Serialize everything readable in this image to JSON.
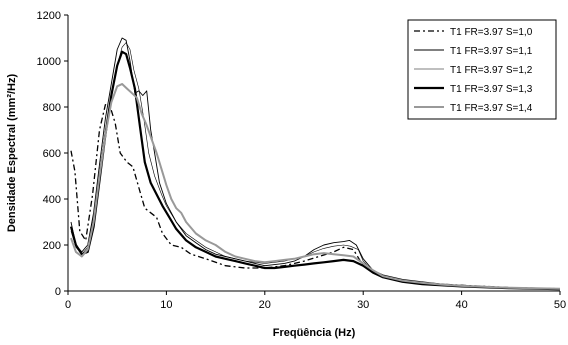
{
  "chart_data": {
    "type": "line",
    "title": "",
    "xlabel": "Freqüência (Hz)",
    "ylabel": "Densidade Espectral (mm²/Hz)",
    "xlim": [
      0,
      50
    ],
    "ylim": [
      0,
      1200
    ],
    "xticks": [
      "0",
      "10",
      "20",
      "30",
      "40",
      "50"
    ],
    "yticks": [
      "0",
      "200",
      "400",
      "600",
      "800",
      "1000",
      "1200"
    ],
    "grid": false,
    "legend_position": "top-right",
    "series": [
      {
        "name": "T1 FR=3.97 S=1,0",
        "color": "#000000",
        "dash": "dash-dot",
        "points": [
          [
            0.3,
            610
          ],
          [
            0.7,
            520
          ],
          [
            1.2,
            260
          ],
          [
            1.8,
            220
          ],
          [
            2.5,
            420
          ],
          [
            3.2,
            700
          ],
          [
            3.8,
            810
          ],
          [
            4.3,
            800
          ],
          [
            4.8,
            730
          ],
          [
            5.3,
            600
          ],
          [
            6.0,
            560
          ],
          [
            6.6,
            540
          ],
          [
            7.2,
            450
          ],
          [
            7.8,
            360
          ],
          [
            8.4,
            340
          ],
          [
            9.0,
            320
          ],
          [
            9.6,
            250
          ],
          [
            10.5,
            200
          ],
          [
            11.5,
            190
          ],
          [
            12.5,
            160
          ],
          [
            14,
            140
          ],
          [
            16,
            110
          ],
          [
            18,
            100
          ],
          [
            20,
            100
          ],
          [
            22,
            110
          ],
          [
            24,
            130
          ],
          [
            25.5,
            150
          ],
          [
            27,
            170
          ],
          [
            28,
            190
          ],
          [
            29,
            180
          ],
          [
            30,
            110
          ],
          [
            31,
            80
          ],
          [
            32,
            60
          ],
          [
            34,
            45
          ],
          [
            36,
            35
          ],
          [
            38,
            30
          ],
          [
            40,
            25
          ],
          [
            45,
            15
          ],
          [
            50,
            10
          ]
        ]
      },
      {
        "name": "T1 FR=3.97 S=1,1",
        "color": "#000000",
        "dash": "solid",
        "width": 0.9,
        "points": [
          [
            0.3,
            300
          ],
          [
            0.8,
            200
          ],
          [
            1.4,
            170
          ],
          [
            2.0,
            200
          ],
          [
            2.6,
            340
          ],
          [
            3.2,
            550
          ],
          [
            3.8,
            750
          ],
          [
            4.4,
            900
          ],
          [
            5.0,
            1050
          ],
          [
            5.5,
            1100
          ],
          [
            5.9,
            1090
          ],
          [
            6.3,
            1000
          ],
          [
            6.8,
            860
          ],
          [
            7.2,
            870
          ],
          [
            7.6,
            850
          ],
          [
            8.0,
            870
          ],
          [
            8.4,
            700
          ],
          [
            8.8,
            600
          ],
          [
            9.3,
            470
          ],
          [
            10,
            380
          ],
          [
            11,
            300
          ],
          [
            12,
            240
          ],
          [
            13,
            210
          ],
          [
            14,
            180
          ],
          [
            15,
            160
          ],
          [
            16,
            150
          ],
          [
            17,
            140
          ],
          [
            18,
            130
          ],
          [
            19,
            120
          ],
          [
            20,
            110
          ],
          [
            21,
            115
          ],
          [
            22,
            120
          ],
          [
            23,
            130
          ],
          [
            24,
            150
          ],
          [
            25,
            180
          ],
          [
            26,
            200
          ],
          [
            27,
            210
          ],
          [
            28,
            215
          ],
          [
            28.6,
            220
          ],
          [
            29.3,
            200
          ],
          [
            30,
            140
          ],
          [
            31,
            90
          ],
          [
            32,
            70
          ],
          [
            34,
            50
          ],
          [
            36,
            40
          ],
          [
            38,
            30
          ],
          [
            40,
            25
          ],
          [
            45,
            15
          ],
          [
            50,
            10
          ]
        ]
      },
      {
        "name": "T1 FR=3.97 S=1,2",
        "color": "#000000",
        "dash": "solid",
        "width": 0.6,
        "points": [
          [
            0.3,
            260
          ],
          [
            0.8,
            190
          ],
          [
            1.4,
            160
          ],
          [
            2.0,
            190
          ],
          [
            2.6,
            330
          ],
          [
            3.2,
            520
          ],
          [
            3.8,
            700
          ],
          [
            4.4,
            850
          ],
          [
            5.0,
            980
          ],
          [
            5.5,
            1060
          ],
          [
            5.9,
            1080
          ],
          [
            6.3,
            1050
          ],
          [
            6.7,
            960
          ],
          [
            7.2,
            880
          ],
          [
            7.7,
            750
          ],
          [
            8.2,
            600
          ],
          [
            8.8,
            500
          ],
          [
            9.5,
            420
          ],
          [
            10,
            370
          ],
          [
            11,
            300
          ],
          [
            12,
            250
          ],
          [
            13,
            220
          ],
          [
            14,
            190
          ],
          [
            15,
            170
          ],
          [
            16,
            150
          ],
          [
            17,
            140
          ],
          [
            18,
            130
          ],
          [
            19,
            125
          ],
          [
            20,
            120
          ],
          [
            21,
            125
          ],
          [
            22,
            130
          ],
          [
            23,
            140
          ],
          [
            24,
            150
          ],
          [
            25,
            170
          ],
          [
            26,
            185
          ],
          [
            27,
            195
          ],
          [
            28,
            200
          ],
          [
            28.7,
            195
          ],
          [
            29.5,
            180
          ],
          [
            30,
            130
          ],
          [
            31,
            85
          ],
          [
            32,
            65
          ],
          [
            34,
            45
          ],
          [
            36,
            35
          ],
          [
            38,
            28
          ],
          [
            40,
            22
          ],
          [
            45,
            14
          ],
          [
            50,
            10
          ]
        ]
      },
      {
        "name": "T1 FR=3.97 S=1,3",
        "color": "#000000",
        "dash": "solid",
        "width": 2.2,
        "points": [
          [
            0.3,
            280
          ],
          [
            0.8,
            200
          ],
          [
            1.4,
            160
          ],
          [
            2.0,
            170
          ],
          [
            2.6,
            280
          ],
          [
            3.2,
            480
          ],
          [
            3.8,
            680
          ],
          [
            4.4,
            850
          ],
          [
            5.0,
            980
          ],
          [
            5.5,
            1040
          ],
          [
            5.9,
            1030
          ],
          [
            6.3,
            970
          ],
          [
            6.8,
            880
          ],
          [
            7.3,
            720
          ],
          [
            7.8,
            560
          ],
          [
            8.4,
            470
          ],
          [
            9.0,
            420
          ],
          [
            9.6,
            370
          ],
          [
            10.3,
            320
          ],
          [
            11,
            270
          ],
          [
            12,
            220
          ],
          [
            13,
            190
          ],
          [
            14,
            170
          ],
          [
            15,
            150
          ],
          [
            16,
            140
          ],
          [
            17,
            130
          ],
          [
            18,
            120
          ],
          [
            19,
            110
          ],
          [
            20,
            100
          ],
          [
            21,
            100
          ],
          [
            22,
            105
          ],
          [
            23,
            110
          ],
          [
            24,
            115
          ],
          [
            25,
            120
          ],
          [
            26,
            125
          ],
          [
            27,
            130
          ],
          [
            28,
            135
          ],
          [
            29,
            130
          ],
          [
            30,
            110
          ],
          [
            31,
            80
          ],
          [
            32,
            60
          ],
          [
            34,
            40
          ],
          [
            36,
            30
          ],
          [
            38,
            25
          ],
          [
            40,
            20
          ],
          [
            45,
            12
          ],
          [
            50,
            8
          ]
        ]
      },
      {
        "name": "T1 FR=3.97 S=1,4",
        "color": "#999999",
        "dash": "solid",
        "width": 2.0,
        "points": [
          [
            0.3,
            230
          ],
          [
            0.8,
            170
          ],
          [
            1.4,
            150
          ],
          [
            2.0,
            180
          ],
          [
            2.6,
            300
          ],
          [
            3.2,
            500
          ],
          [
            3.8,
            680
          ],
          [
            4.4,
            820
          ],
          [
            5.0,
            890
          ],
          [
            5.5,
            900
          ],
          [
            6.0,
            880
          ],
          [
            6.5,
            860
          ],
          [
            7.0,
            840
          ],
          [
            7.5,
            770
          ],
          [
            8.0,
            720
          ],
          [
            8.5,
            660
          ],
          [
            9.0,
            600
          ],
          [
            9.5,
            530
          ],
          [
            10,
            460
          ],
          [
            10.5,
            400
          ],
          [
            11,
            360
          ],
          [
            11.5,
            340
          ],
          [
            12,
            300
          ],
          [
            13,
            250
          ],
          [
            14,
            220
          ],
          [
            15,
            200
          ],
          [
            16,
            170
          ],
          [
            17,
            150
          ],
          [
            18,
            140
          ],
          [
            19,
            130
          ],
          [
            20,
            125
          ],
          [
            21,
            130
          ],
          [
            22,
            135
          ],
          [
            23,
            140
          ],
          [
            24,
            150
          ],
          [
            25,
            160
          ],
          [
            26,
            165
          ],
          [
            27,
            160
          ],
          [
            28,
            155
          ],
          [
            29,
            150
          ],
          [
            30,
            120
          ],
          [
            31,
            90
          ],
          [
            32,
            65
          ],
          [
            34,
            45
          ],
          [
            36,
            35
          ],
          [
            38,
            28
          ],
          [
            40,
            22
          ],
          [
            45,
            14
          ],
          [
            50,
            10
          ]
        ]
      }
    ]
  }
}
